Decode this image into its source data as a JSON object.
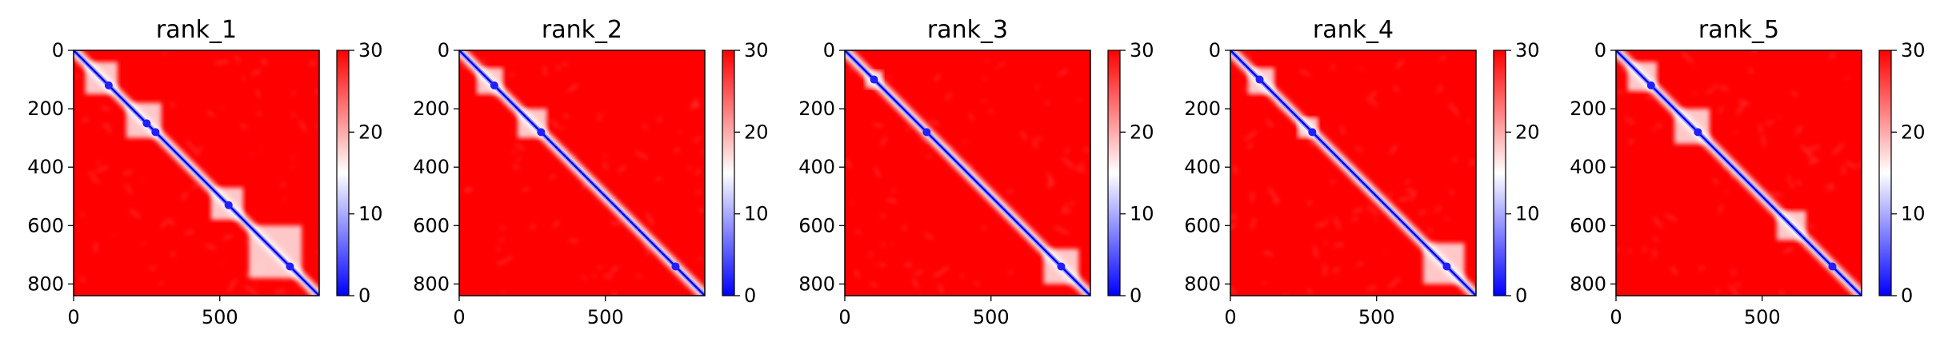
{
  "colormap": {
    "low": "#0000ff",
    "mid": "#ffffff",
    "high": "#ff0000",
    "vmin": 0,
    "vmax": 30,
    "ticks": [
      "0",
      "10",
      "20",
      "30"
    ],
    "tick_values": [
      0,
      10,
      20,
      30
    ]
  },
  "chart_data": [
    {
      "type": "heatmap",
      "title": "rank_1",
      "xlim": [
        0,
        840
      ],
      "ylim": [
        840,
        0
      ],
      "xticks": [
        0,
        500
      ],
      "xtick_labels": [
        "0",
        "500"
      ],
      "yticks": [
        0,
        200,
        400,
        600,
        800
      ],
      "ytick_labels": [
        "0",
        "200",
        "400",
        "600",
        "800"
      ],
      "matrix_size": 840,
      "domains": [
        [
          40,
          150
        ],
        [
          180,
          300
        ],
        [
          470,
          580
        ],
        [
          600,
          780
        ]
      ],
      "diagonal_spots": [
        120,
        250,
        280,
        530,
        740
      ]
    },
    {
      "type": "heatmap",
      "title": "rank_2",
      "xlim": [
        0,
        840
      ],
      "ylim": [
        840,
        0
      ],
      "xticks": [
        0,
        500
      ],
      "xtick_labels": [
        "0",
        "500"
      ],
      "yticks": [
        0,
        200,
        400,
        600,
        800
      ],
      "ytick_labels": [
        "0",
        "200",
        "400",
        "600",
        "800"
      ],
      "matrix_size": 840,
      "domains": [
        [
          60,
          150
        ],
        [
          200,
          300
        ]
      ],
      "diagonal_spots": [
        120,
        280,
        740
      ]
    },
    {
      "type": "heatmap",
      "title": "rank_3",
      "xlim": [
        0,
        840
      ],
      "ylim": [
        840,
        0
      ],
      "xticks": [
        0,
        500
      ],
      "xtick_labels": [
        "0",
        "500"
      ],
      "yticks": [
        0,
        200,
        400,
        600,
        800
      ],
      "ytick_labels": [
        "0",
        "200",
        "400",
        "600",
        "800"
      ],
      "matrix_size": 840,
      "domains": [
        [
          70,
          130
        ],
        [
          680,
          800
        ]
      ],
      "diagonal_spots": [
        100,
        280,
        740
      ]
    },
    {
      "type": "heatmap",
      "title": "rank_4",
      "xlim": [
        0,
        840
      ],
      "ylim": [
        840,
        0
      ],
      "xticks": [
        0,
        500
      ],
      "xtick_labels": [
        "0",
        "500"
      ],
      "yticks": [
        0,
        200,
        400,
        600,
        800
      ],
      "ytick_labels": [
        "0",
        "200",
        "400",
        "600",
        "800"
      ],
      "matrix_size": 840,
      "domains": [
        [
          60,
          150
        ],
        [
          230,
          300
        ],
        [
          660,
          800
        ]
      ],
      "diagonal_spots": [
        100,
        280,
        740
      ]
    },
    {
      "type": "heatmap",
      "title": "rank_5",
      "xlim": [
        0,
        840
      ],
      "ylim": [
        840,
        0
      ],
      "xticks": [
        0,
        500
      ],
      "xtick_labels": [
        "0",
        "500"
      ],
      "yticks": [
        0,
        200,
        400,
        600,
        800
      ],
      "ytick_labels": [
        "0",
        "200",
        "400",
        "600",
        "800"
      ],
      "matrix_size": 840,
      "domains": [
        [
          40,
          140
        ],
        [
          200,
          320
        ],
        [
          550,
          650
        ]
      ],
      "diagonal_spots": [
        120,
        280,
        740
      ]
    }
  ]
}
